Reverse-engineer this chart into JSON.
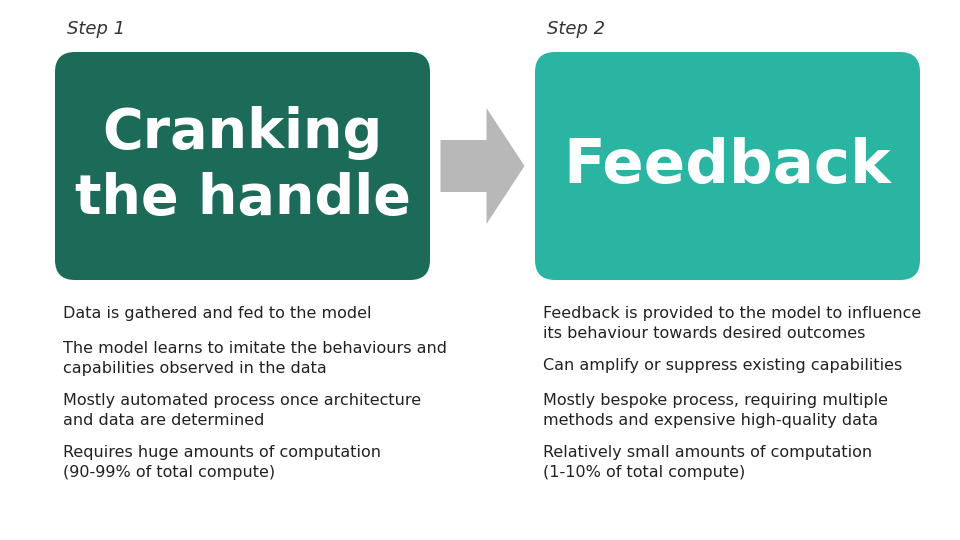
{
  "background_color": "#ffffff",
  "step1_label": "Step 1",
  "step2_label": "Step 2",
  "step1_title": "Cranking\nthe handle",
  "step2_title": "Feedback",
  "box1_color": "#1b6b58",
  "box2_color": "#2ab5a3",
  "arrow_color": "#b8b8b8",
  "title_text_color": "#ffffff",
  "step_label_color": "#333333",
  "body_text_color": "#222222",
  "step1_bullets": [
    "Data is gathered and fed to the model",
    "The model learns to imitate the behaviours and\ncapabilities observed in the data",
    "Mostly automated process once architecture\nand data are determined",
    "Requires huge amounts of computation\n(90-99% of total compute)"
  ],
  "step2_bullets": [
    "Feedback is provided to the model to influence\nits behaviour towards desired outcomes",
    "Can amplify or suppress existing capabilities",
    "Mostly bespoke process, requiring multiple\nmethods and expensive high-quality data",
    "Relatively small amounts of computation\n(1-10% of total compute)"
  ]
}
